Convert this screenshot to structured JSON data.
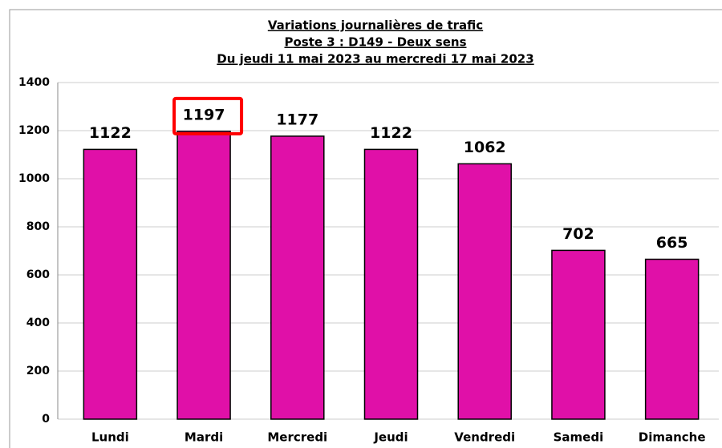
{
  "chart_data": {
    "type": "bar",
    "title": "Variations journalières de trafic",
    "subtitle": "Poste 3 : D149 - Deux sens",
    "period": "Du jeudi 11 mai 2023 au mercredi 17 mai 2023",
    "categories": [
      "Lundi",
      "Mardi",
      "Mercredi",
      "Jeudi",
      "Vendredi",
      "Samedi",
      "Dimanche"
    ],
    "values": [
      1122,
      1197,
      1177,
      1122,
      1062,
      702,
      665
    ],
    "color": "#e010a8",
    "ylim": [
      0,
      1400
    ],
    "yticks": [
      0,
      200,
      400,
      600,
      800,
      1000,
      1200,
      1400
    ],
    "grid": true,
    "highlight": "Mardi",
    "highlight_color": "#ff0000"
  }
}
